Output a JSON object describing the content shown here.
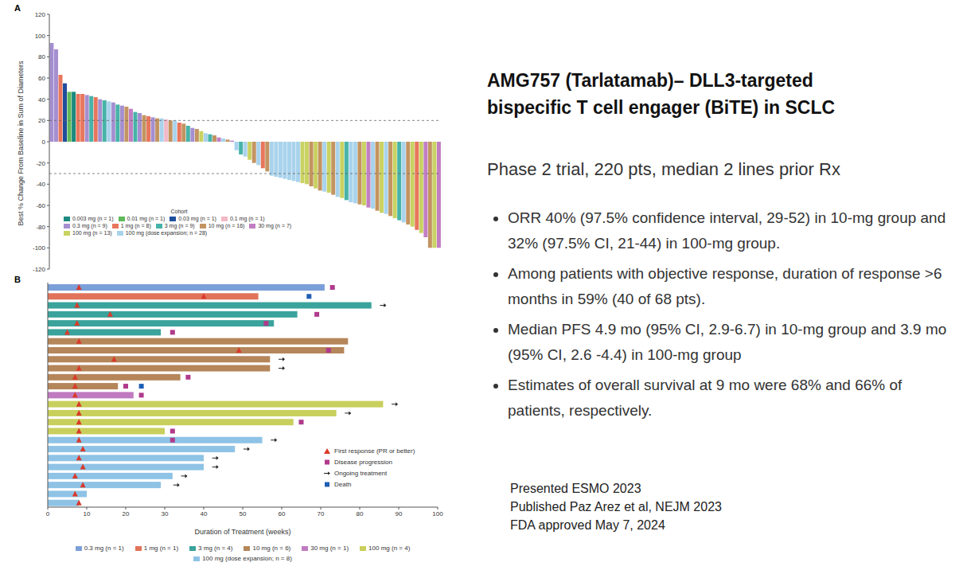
{
  "chart_data": [
    {
      "panel": "A",
      "type": "bar",
      "y_label": "Best % Change From Baseline in Sum of Diameters",
      "ylim": [
        -120,
        120
      ],
      "yticks": [
        -120,
        -100,
        -80,
        -60,
        -40,
        -20,
        0,
        20,
        40,
        60,
        80,
        100,
        120
      ],
      "tick_labels": "y",
      "grid": false,
      "reference_lines": [
        20,
        -30
      ],
      "legend": "lower left",
      "legend_title": "Cohort",
      "legend_entries": [
        {
          "name": "0.003 mg (n = 1)",
          "color": "#1b8a7e"
        },
        {
          "name": "0.01 mg (n = 1)",
          "color": "#5fb85a"
        },
        {
          "name": "0.03 mg (n = 1)",
          "color": "#1f4e9c"
        },
        {
          "name": "0.1 mg (n = 1)",
          "color": "#f2b8c6"
        },
        {
          "name": "0.3 mg (n = 9)",
          "color": "#a58fd0"
        },
        {
          "name": "1 mg (n = 8)",
          "color": "#e8765c"
        },
        {
          "name": "3 mg (n = 9)",
          "color": "#47b3a8"
        },
        {
          "name": "10 mg (n = 16)",
          "color": "#c39461"
        },
        {
          "name": "30 mg (n = 7)",
          "color": "#c17ec3"
        },
        {
          "name": "100 mg (n = 13)",
          "color": "#c9d262"
        },
        {
          "name": "100 mg (dose expansion; n = 28)",
          "color": "#a9d3ec"
        }
      ],
      "categories": [
        null,
        null,
        null,
        null,
        null,
        null,
        null,
        null,
        null,
        null,
        null,
        null,
        null,
        null,
        null,
        null,
        null,
        null,
        null,
        null,
        null,
        null,
        null,
        null,
        null,
        null,
        null,
        null,
        null,
        null,
        null,
        null,
        null,
        null,
        null,
        null,
        null,
        null,
        null,
        null,
        null,
        null,
        null,
        null,
        null,
        null,
        null,
        null,
        null,
        null,
        null,
        null,
        null,
        null,
        null,
        null,
        null,
        null,
        null,
        null,
        null,
        null,
        null,
        null,
        null,
        null,
        null,
        null,
        null,
        null,
        null,
        null,
        null,
        null,
        null,
        null,
        null,
        null,
        null,
        null,
        null,
        null,
        null,
        null,
        null,
        null,
        null,
        null,
        null
      ],
      "values": [
        93,
        87,
        63,
        55,
        47,
        47,
        45,
        45,
        44,
        43,
        42,
        40,
        39,
        38,
        37,
        35,
        34,
        33,
        31,
        28,
        27,
        25,
        24,
        23,
        22,
        22,
        21,
        20,
        20,
        18,
        17,
        15,
        13,
        12,
        10,
        8,
        7,
        6,
        4,
        3,
        2,
        1,
        -8,
        -12,
        -14,
        -17,
        -20,
        -22,
        -25,
        -28,
        -32,
        -33,
        -34,
        -35,
        -36,
        -37,
        -38,
        -39,
        -40,
        -42,
        -44,
        -46,
        -47,
        -48,
        -50,
        -52,
        -53,
        -55,
        -57,
        -58,
        -59,
        -60,
        -62,
        -63,
        -65,
        -67,
        -68,
        -70,
        -72,
        -74,
        -76,
        -78,
        -80,
        -83,
        -86,
        -90,
        -100,
        -100,
        -100
      ],
      "colors": [
        "#a58fd0",
        "#a58fd0",
        "#e8765c",
        "#1f4e9c",
        "#5fb85a",
        "#1b8a7e",
        "#e8765c",
        "#e8765c",
        "#a58fd0",
        "#47b3a8",
        "#e8765c",
        "#a58fd0",
        "#47b3a8",
        "#a9d3ec",
        "#a58fd0",
        "#47b3a8",
        "#a58fd0",
        "#c39461",
        "#c17ec3",
        "#47b3a8",
        "#a58fd0",
        "#c39461",
        "#e8765c",
        "#a58fd0",
        "#c39461",
        "#a9d3ec",
        "#f2b8c6",
        "#c39461",
        "#a9d3ec",
        "#e8765c",
        "#c39461",
        "#47b3a8",
        "#a58fd0",
        "#c39461",
        "#c9d262",
        "#a9d3ec",
        "#47b3a8",
        "#c39461",
        "#c17ec3",
        "#a9d3ec",
        "#c39461",
        "#c17ec3",
        "#a9d3ec",
        "#47b3a8",
        "#a9d3ec",
        "#c9d262",
        "#c39461",
        "#a9d3ec",
        "#e8765c",
        "#c39461",
        "#a9d3ec",
        "#a9d3ec",
        "#a9d3ec",
        "#a9d3ec",
        "#a9d3ec",
        "#a9d3ec",
        "#a9d3ec",
        "#c9d262",
        "#c9d262",
        "#c39461",
        "#c9d262",
        "#c39461",
        "#a9d3ec",
        "#c9d262",
        "#c39461",
        "#a9d3ec",
        "#c9d262",
        "#47b3a8",
        "#a9d3ec",
        "#a9d3ec",
        "#c39461",
        "#c9d262",
        "#c17ec3",
        "#a9d3ec",
        "#c39461",
        "#c9d262",
        "#a9d3ec",
        "#c39461",
        "#c9d262",
        "#47b3a8",
        "#a9d3ec",
        "#c39461",
        "#c9d262",
        "#e8765c",
        "#c9d262",
        "#c17ec3",
        "#c39461",
        "#c9d262",
        "#c17ec3"
      ]
    },
    {
      "panel": "B",
      "type": "swimmer",
      "orientation": "horizontal",
      "x_label": "Duration of Treatment (weeks)",
      "xlim": [
        0,
        100
      ],
      "xticks": [
        0,
        10,
        20,
        30,
        40,
        50,
        60,
        70,
        80,
        90,
        100
      ],
      "tick_labels": "x",
      "grid": false,
      "legend": "bottom",
      "legend_entries": [
        {
          "name": "0.3 mg (n = 1)",
          "color": "#7b9fd8"
        },
        {
          "name": "1 mg (n = 1)",
          "color": "#e0735a"
        },
        {
          "name": "3 mg (n = 4)",
          "color": "#3aa39b"
        },
        {
          "name": "10 mg (n = 6)",
          "color": "#b5865a"
        },
        {
          "name": "30 mg (n = 1)",
          "color": "#c07bc0"
        },
        {
          "name": "100 mg (n = 4)",
          "color": "#c8cf5c"
        },
        {
          "name": "100 mg (dose expansion; n = 8)",
          "color": "#8ec3e6"
        }
      ],
      "marker_legend": [
        {
          "name": "First response (PR or better)",
          "color": "#d93a2b",
          "marker": "triangle"
        },
        {
          "name": "Disease progression",
          "color": "#b03a8c",
          "marker": "square"
        },
        {
          "name": "Ongoing treatment",
          "color": "#222222",
          "marker": "arrow"
        },
        {
          "name": "Death",
          "color": "#1f5fb4",
          "marker": "square"
        }
      ],
      "categories": [
        null,
        null,
        null,
        null,
        null,
        null,
        null,
        null,
        null,
        null,
        null,
        null,
        null,
        null,
        null,
        null,
        null,
        null,
        null,
        null,
        null,
        null,
        null,
        null,
        null
      ],
      "values": [
        71,
        54,
        83,
        64,
        58,
        29,
        77,
        76,
        57,
        57,
        34,
        18,
        22,
        86,
        74,
        63,
        30,
        55,
        48,
        40,
        40,
        32,
        29,
        10,
        8
      ],
      "colors": [
        "#7b9fd8",
        "#e0735a",
        "#3aa39b",
        "#3aa39b",
        "#3aa39b",
        "#3aa39b",
        "#b5865a",
        "#b5865a",
        "#b5865a",
        "#b5865a",
        "#b5865a",
        "#b5865a",
        "#c07bc0",
        "#c8cf5c",
        "#c8cf5c",
        "#c8cf5c",
        "#c8cf5c",
        "#8ec3e6",
        "#8ec3e6",
        "#8ec3e6",
        "#8ec3e6",
        "#8ec3e6",
        "#8ec3e6",
        "#8ec3e6",
        "#8ec3e6"
      ],
      "first_response": [
        8,
        40,
        7.5,
        16,
        7.5,
        5,
        8,
        49,
        17,
        8,
        7,
        7,
        7,
        8,
        8,
        8,
        8,
        8,
        9,
        8,
        9,
        7,
        9,
        7,
        8
      ],
      "disease_progression": [
        73,
        null,
        null,
        69,
        56,
        32,
        null,
        72,
        null,
        null,
        36,
        20,
        24,
        null,
        null,
        65,
        32,
        32,
        null,
        null,
        null,
        null,
        null,
        null,
        null
      ],
      "ongoing_treatment": [
        null,
        null,
        86,
        null,
        null,
        null,
        null,
        null,
        60,
        60,
        null,
        null,
        null,
        89,
        77,
        null,
        null,
        58,
        51,
        43,
        43,
        35,
        33,
        null,
        null
      ],
      "death": [
        null,
        67,
        null,
        null,
        null,
        null,
        null,
        null,
        null,
        null,
        null,
        24,
        null,
        null,
        null,
        null,
        null,
        null,
        null,
        null,
        null,
        null,
        null,
        null,
        null
      ]
    }
  ],
  "text_panel": {
    "title": [
      "AMG757 (Tarlatamab)– DLL3-targeted",
      "bispecific T cell engager (BiTE) in SCLC"
    ],
    "subtitle": "Phase 2 trial, 220 pts, median 2 lines prior Rx",
    "bullets": [
      "ORR 40% (97.5% confidence interval, 29-52) in 10-mg group and 32% (97.5% CI, 21-44) in 100-mg group.",
      "Among patients with objective response, duration of response >6 months in 59% (40 of 68 pts).",
      "Median PFS 4.9 mo (95% CI, 2.9-6.7) in 10-mg group and 3.9 mo (95% CI, 2.6 -4.4) in 100-mg group",
      "Estimates of overall survival at 9 mo were 68% and 66% of patients, respectively."
    ],
    "footer": [
      "Presented ESMO 2023",
      "Published Paz Arez et al, NEJM 2023",
      "FDA approved May 7, 2024"
    ]
  }
}
